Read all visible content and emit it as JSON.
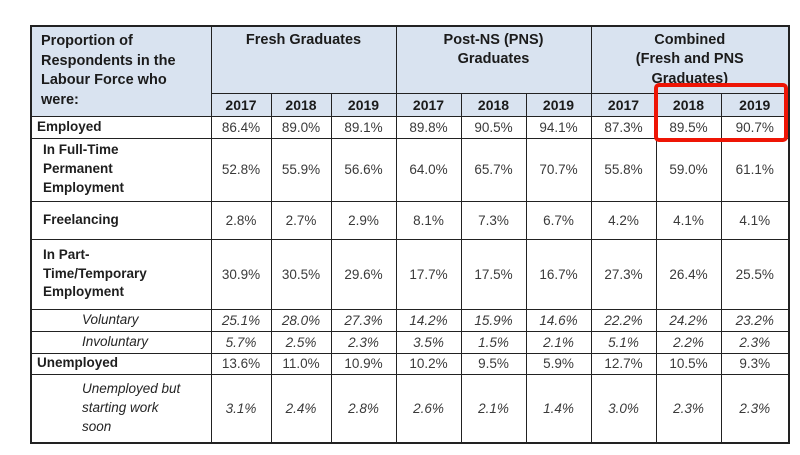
{
  "chart_data": {
    "type": "table",
    "corner_header": "Proportion of\nRespondents in the\nLabour Force who\nwere:",
    "header_bg": "#d9e3f0",
    "border_color": "#222222",
    "column_groups": [
      {
        "label": "Fresh Graduates",
        "years": [
          "2017",
          "2018",
          "2019"
        ]
      },
      {
        "label": "Post-NS (PNS)\nGraduates",
        "years": [
          "2017",
          "2018",
          "2019"
        ]
      },
      {
        "label": "Combined\n(Fresh and PNS\nGraduates)",
        "years": [
          "2017",
          "2018",
          "2019"
        ]
      }
    ],
    "rows": [
      {
        "label": "Employed",
        "indent": 0,
        "italic": false,
        "values": [
          "86.4%",
          "89.0%",
          "89.1%",
          "89.8%",
          "90.5%",
          "94.1%",
          "87.3%",
          "89.5%",
          "90.7%"
        ]
      },
      {
        "label": "In Full-Time\nPermanent\nEmployment",
        "indent": 1,
        "italic": false,
        "values": [
          "52.8%",
          "55.9%",
          "56.6%",
          "64.0%",
          "65.7%",
          "70.7%",
          "55.8%",
          "59.0%",
          "61.1%"
        ]
      },
      {
        "label": "Freelancing",
        "indent": 1,
        "italic": false,
        "values": [
          "2.8%",
          "2.7%",
          "2.9%",
          "8.1%",
          "7.3%",
          "6.7%",
          "4.2%",
          "4.1%",
          "4.1%"
        ]
      },
      {
        "label": "In Part-\nTime/Temporary\nEmployment",
        "indent": 1,
        "italic": false,
        "values": [
          "30.9%",
          "30.5%",
          "29.6%",
          "17.7%",
          "17.5%",
          "16.7%",
          "27.3%",
          "26.4%",
          "25.5%"
        ]
      },
      {
        "label": "Voluntary",
        "indent": 2,
        "italic": true,
        "values": [
          "25.1%",
          "28.0%",
          "27.3%",
          "14.2%",
          "15.9%",
          "14.6%",
          "22.2%",
          "24.2%",
          "23.2%"
        ]
      },
      {
        "label": "Involuntary",
        "indent": 2,
        "italic": true,
        "values": [
          "5.7%",
          "2.5%",
          "2.3%",
          "3.5%",
          "1.5%",
          "2.1%",
          "5.1%",
          "2.2%",
          "2.3%"
        ]
      },
      {
        "label": "Unemployed",
        "indent": 0,
        "italic": false,
        "values": [
          "13.6%",
          "11.0%",
          "10.9%",
          "10.2%",
          "9.5%",
          "5.9%",
          "12.7%",
          "10.5%",
          "9.3%"
        ]
      },
      {
        "label": "Unemployed but\nstarting work\nsoon",
        "indent": 2,
        "italic": true,
        "values": [
          "3.1%",
          "2.4%",
          "2.8%",
          "2.6%",
          "2.1%",
          "1.4%",
          "3.0%",
          "2.3%",
          "2.3%"
        ]
      }
    ],
    "highlight": {
      "color": "#ee1505",
      "target": "Combined (Fresh and PNS Graduates) 2018 and 2019 Employed values"
    }
  }
}
